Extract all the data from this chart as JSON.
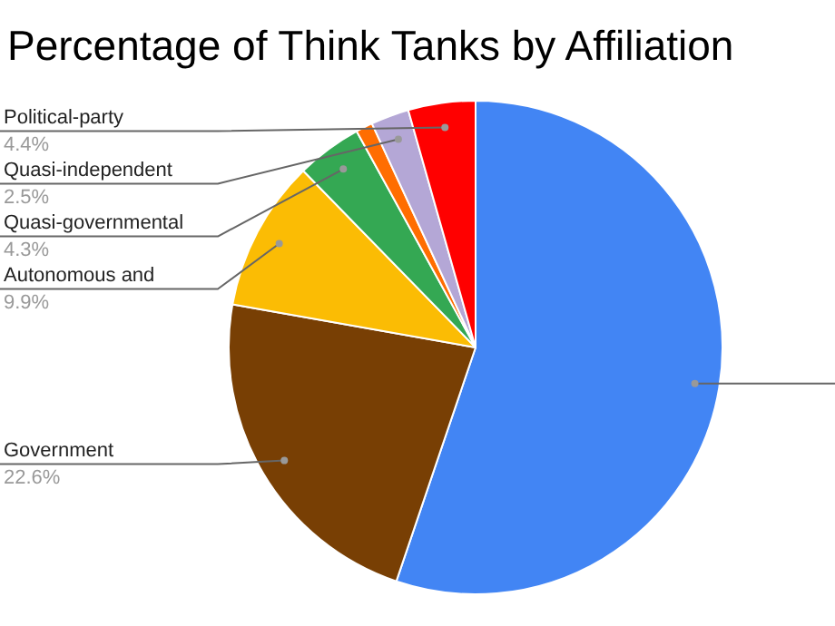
{
  "chart_data": {
    "type": "pie",
    "title": "Percentage of Think Tanks by Affiliation",
    "categories": [
      null,
      "Government",
      "Autonomous and",
      "Quasi-governmental",
      null,
      "Quasi-independent",
      "Political-party"
    ],
    "values": [
      55.2,
      22.6,
      9.9,
      4.3,
      1.1,
      2.5,
      4.4
    ],
    "value_labels": [
      null,
      "22.6%",
      "9.9%",
      "4.3%",
      null,
      "2.5%",
      "4.4%"
    ],
    "colors": [
      "#4285f4",
      "#783f04",
      "#fbbc04",
      "#34a853",
      "#ff6d01",
      "#b4a7d6",
      "#ff0000"
    ],
    "legend": false
  }
}
